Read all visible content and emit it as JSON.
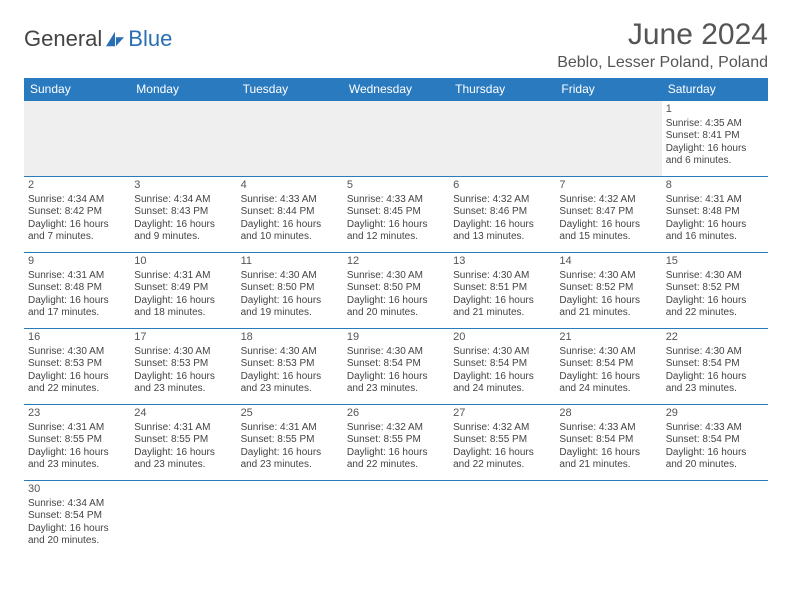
{
  "brand": {
    "part1": "General",
    "part2": "Blue"
  },
  "title": "June 2024",
  "location": "Beblo, Lesser Poland, Poland",
  "colors": {
    "header_bg": "#2a7ac0",
    "header_text": "#ffffff",
    "cell_border": "#2a7ac0",
    "empty_bg": "#efefef",
    "text": "#444444",
    "brand_blue": "#2a6fb5"
  },
  "day_headers": [
    "Sunday",
    "Monday",
    "Tuesday",
    "Wednesday",
    "Thursday",
    "Friday",
    "Saturday"
  ],
  "weeks": [
    [
      {
        "empty": true
      },
      {
        "empty": true
      },
      {
        "empty": true
      },
      {
        "empty": true
      },
      {
        "empty": true
      },
      {
        "empty": true
      },
      {
        "n": "1",
        "sunrise": "Sunrise: 4:35 AM",
        "sunset": "Sunset: 8:41 PM",
        "daylight1": "Daylight: 16 hours",
        "daylight2": "and 6 minutes."
      }
    ],
    [
      {
        "n": "2",
        "sunrise": "Sunrise: 4:34 AM",
        "sunset": "Sunset: 8:42 PM",
        "daylight1": "Daylight: 16 hours",
        "daylight2": "and 7 minutes."
      },
      {
        "n": "3",
        "sunrise": "Sunrise: 4:34 AM",
        "sunset": "Sunset: 8:43 PM",
        "daylight1": "Daylight: 16 hours",
        "daylight2": "and 9 minutes."
      },
      {
        "n": "4",
        "sunrise": "Sunrise: 4:33 AM",
        "sunset": "Sunset: 8:44 PM",
        "daylight1": "Daylight: 16 hours",
        "daylight2": "and 10 minutes."
      },
      {
        "n": "5",
        "sunrise": "Sunrise: 4:33 AM",
        "sunset": "Sunset: 8:45 PM",
        "daylight1": "Daylight: 16 hours",
        "daylight2": "and 12 minutes."
      },
      {
        "n": "6",
        "sunrise": "Sunrise: 4:32 AM",
        "sunset": "Sunset: 8:46 PM",
        "daylight1": "Daylight: 16 hours",
        "daylight2": "and 13 minutes."
      },
      {
        "n": "7",
        "sunrise": "Sunrise: 4:32 AM",
        "sunset": "Sunset: 8:47 PM",
        "daylight1": "Daylight: 16 hours",
        "daylight2": "and 15 minutes."
      },
      {
        "n": "8",
        "sunrise": "Sunrise: 4:31 AM",
        "sunset": "Sunset: 8:48 PM",
        "daylight1": "Daylight: 16 hours",
        "daylight2": "and 16 minutes."
      }
    ],
    [
      {
        "n": "9",
        "sunrise": "Sunrise: 4:31 AM",
        "sunset": "Sunset: 8:48 PM",
        "daylight1": "Daylight: 16 hours",
        "daylight2": "and 17 minutes."
      },
      {
        "n": "10",
        "sunrise": "Sunrise: 4:31 AM",
        "sunset": "Sunset: 8:49 PM",
        "daylight1": "Daylight: 16 hours",
        "daylight2": "and 18 minutes."
      },
      {
        "n": "11",
        "sunrise": "Sunrise: 4:30 AM",
        "sunset": "Sunset: 8:50 PM",
        "daylight1": "Daylight: 16 hours",
        "daylight2": "and 19 minutes."
      },
      {
        "n": "12",
        "sunrise": "Sunrise: 4:30 AM",
        "sunset": "Sunset: 8:50 PM",
        "daylight1": "Daylight: 16 hours",
        "daylight2": "and 20 minutes."
      },
      {
        "n": "13",
        "sunrise": "Sunrise: 4:30 AM",
        "sunset": "Sunset: 8:51 PM",
        "daylight1": "Daylight: 16 hours",
        "daylight2": "and 21 minutes."
      },
      {
        "n": "14",
        "sunrise": "Sunrise: 4:30 AM",
        "sunset": "Sunset: 8:52 PM",
        "daylight1": "Daylight: 16 hours",
        "daylight2": "and 21 minutes."
      },
      {
        "n": "15",
        "sunrise": "Sunrise: 4:30 AM",
        "sunset": "Sunset: 8:52 PM",
        "daylight1": "Daylight: 16 hours",
        "daylight2": "and 22 minutes."
      }
    ],
    [
      {
        "n": "16",
        "sunrise": "Sunrise: 4:30 AM",
        "sunset": "Sunset: 8:53 PM",
        "daylight1": "Daylight: 16 hours",
        "daylight2": "and 22 minutes."
      },
      {
        "n": "17",
        "sunrise": "Sunrise: 4:30 AM",
        "sunset": "Sunset: 8:53 PM",
        "daylight1": "Daylight: 16 hours",
        "daylight2": "and 23 minutes."
      },
      {
        "n": "18",
        "sunrise": "Sunrise: 4:30 AM",
        "sunset": "Sunset: 8:53 PM",
        "daylight1": "Daylight: 16 hours",
        "daylight2": "and 23 minutes."
      },
      {
        "n": "19",
        "sunrise": "Sunrise: 4:30 AM",
        "sunset": "Sunset: 8:54 PM",
        "daylight1": "Daylight: 16 hours",
        "daylight2": "and 23 minutes."
      },
      {
        "n": "20",
        "sunrise": "Sunrise: 4:30 AM",
        "sunset": "Sunset: 8:54 PM",
        "daylight1": "Daylight: 16 hours",
        "daylight2": "and 24 minutes."
      },
      {
        "n": "21",
        "sunrise": "Sunrise: 4:30 AM",
        "sunset": "Sunset: 8:54 PM",
        "daylight1": "Daylight: 16 hours",
        "daylight2": "and 24 minutes."
      },
      {
        "n": "22",
        "sunrise": "Sunrise: 4:30 AM",
        "sunset": "Sunset: 8:54 PM",
        "daylight1": "Daylight: 16 hours",
        "daylight2": "and 23 minutes."
      }
    ],
    [
      {
        "n": "23",
        "sunrise": "Sunrise: 4:31 AM",
        "sunset": "Sunset: 8:55 PM",
        "daylight1": "Daylight: 16 hours",
        "daylight2": "and 23 minutes."
      },
      {
        "n": "24",
        "sunrise": "Sunrise: 4:31 AM",
        "sunset": "Sunset: 8:55 PM",
        "daylight1": "Daylight: 16 hours",
        "daylight2": "and 23 minutes."
      },
      {
        "n": "25",
        "sunrise": "Sunrise: 4:31 AM",
        "sunset": "Sunset: 8:55 PM",
        "daylight1": "Daylight: 16 hours",
        "daylight2": "and 23 minutes."
      },
      {
        "n": "26",
        "sunrise": "Sunrise: 4:32 AM",
        "sunset": "Sunset: 8:55 PM",
        "daylight1": "Daylight: 16 hours",
        "daylight2": "and 22 minutes."
      },
      {
        "n": "27",
        "sunrise": "Sunrise: 4:32 AM",
        "sunset": "Sunset: 8:55 PM",
        "daylight1": "Daylight: 16 hours",
        "daylight2": "and 22 minutes."
      },
      {
        "n": "28",
        "sunrise": "Sunrise: 4:33 AM",
        "sunset": "Sunset: 8:54 PM",
        "daylight1": "Daylight: 16 hours",
        "daylight2": "and 21 minutes."
      },
      {
        "n": "29",
        "sunrise": "Sunrise: 4:33 AM",
        "sunset": "Sunset: 8:54 PM",
        "daylight1": "Daylight: 16 hours",
        "daylight2": "and 20 minutes."
      }
    ],
    [
      {
        "n": "30",
        "sunrise": "Sunrise: 4:34 AM",
        "sunset": "Sunset: 8:54 PM",
        "daylight1": "Daylight: 16 hours",
        "daylight2": "and 20 minutes."
      },
      {
        "empty": true,
        "noborder": true
      },
      {
        "empty": true,
        "noborder": true
      },
      {
        "empty": true,
        "noborder": true
      },
      {
        "empty": true,
        "noborder": true
      },
      {
        "empty": true,
        "noborder": true
      },
      {
        "empty": true,
        "noborder": true
      }
    ]
  ]
}
